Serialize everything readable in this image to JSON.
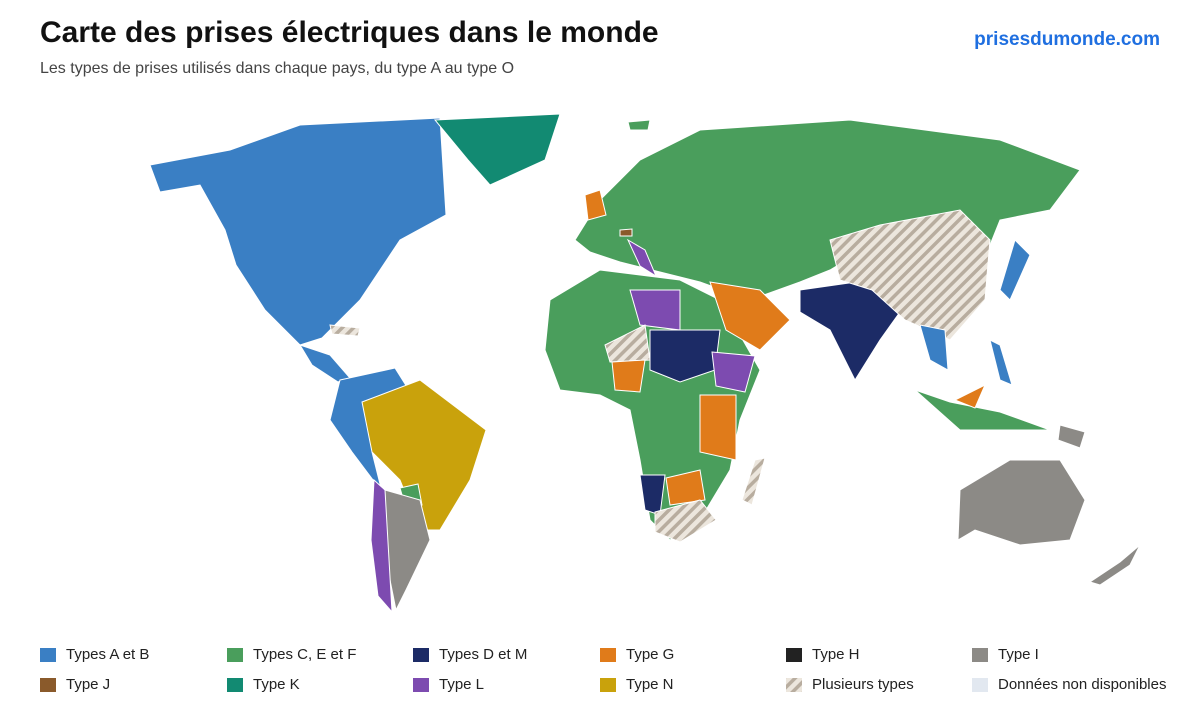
{
  "header": {
    "title": "Carte des prises électriques dans le monde",
    "subtitle": "Les types de prises utilisés dans chaque pays, du type A au type O",
    "site": "prisesdumonde.com"
  },
  "legend": {
    "items": [
      {
        "label": "Types A et B",
        "color": "#3a7fc4"
      },
      {
        "label": "Types C, E et F",
        "color": "#4a9e5c"
      },
      {
        "label": "Types D et M",
        "color": "#1c2b66"
      },
      {
        "label": "Type G",
        "color": "#e07b1a"
      },
      {
        "label": "Type H",
        "color": "#222222"
      },
      {
        "label": "Type I",
        "color": "#8c8a86"
      },
      {
        "label": "Type J",
        "color": "#8a5a2b"
      },
      {
        "label": "Type K",
        "color": "#128a72"
      },
      {
        "label": "Type L",
        "color": "#7d4bb0"
      },
      {
        "label": "Type N",
        "color": "#c9a20c"
      },
      {
        "label": "Plusieurs types",
        "color": "#b8ad9f",
        "pattern": "hatched"
      },
      {
        "label": "Données non disponibles",
        "color": "#e2e8f0"
      }
    ]
  }
}
